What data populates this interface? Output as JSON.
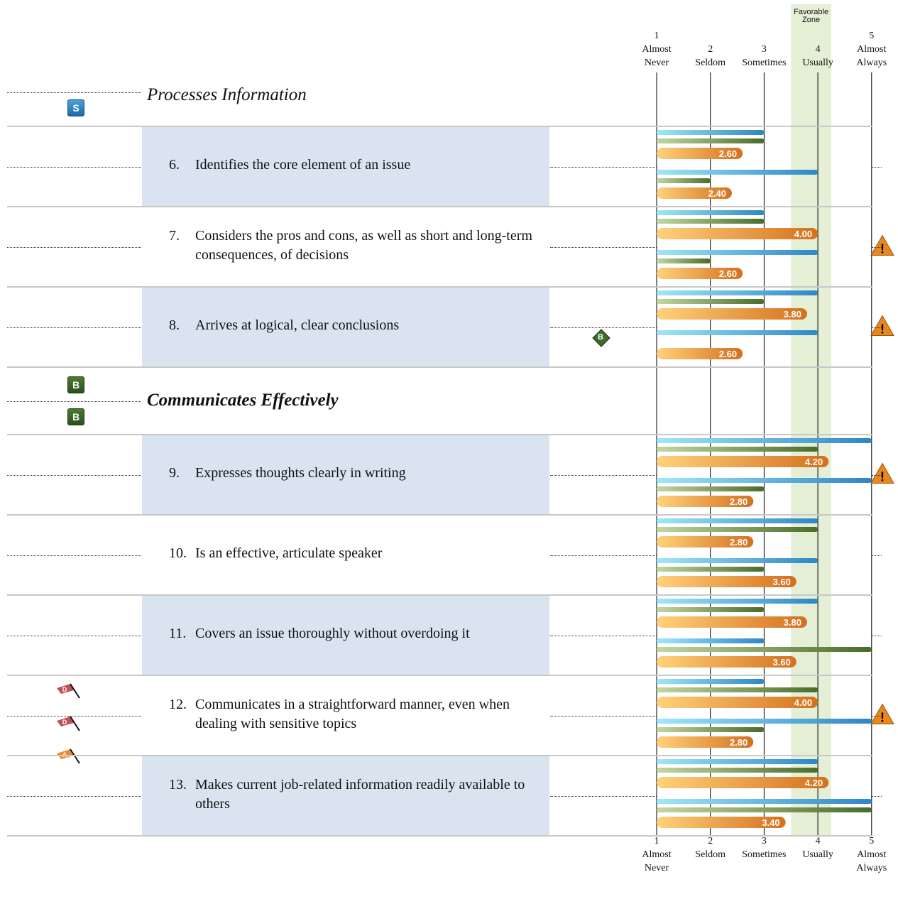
{
  "chart_data": {
    "type": "bar",
    "orientation": "horizontal",
    "x_range": [
      1,
      5
    ],
    "scale": [
      {
        "value": "1",
        "lines": [
          "Almost",
          "Never"
        ]
      },
      {
        "value": "2",
        "lines": [
          "Seldom"
        ]
      },
      {
        "value": "3",
        "lines": [
          "Sometimes"
        ]
      },
      {
        "value": "4",
        "lines": [
          "Usually"
        ]
      },
      {
        "value": "5",
        "lines": [
          "Almost",
          "Always"
        ]
      }
    ],
    "favorable_zone": {
      "label_lines": [
        "Favorable",
        "Zone"
      ],
      "range": [
        3.5,
        4.25
      ],
      "color": "#e4efd6"
    },
    "colors": {
      "blue": "#2f86c6",
      "blue_light": "#9fe8f8",
      "green": "#4a6b2a",
      "green_light": "#c2d8a0",
      "orange": "#d4701e",
      "orange_light": "#ffd27a",
      "shaded_row": "#dae4f0"
    },
    "sections": [
      {
        "type": "header",
        "title": "Processes Information",
        "bold": false,
        "badges": [
          "S"
        ]
      },
      {
        "type": "item",
        "num": "6.",
        "text": "Identifies the core element of an issue",
        "shaded": true,
        "warning": false,
        "top": {
          "blue": 3.0,
          "green": 3.0,
          "orange": 2.6,
          "orange_label": "2.60"
        },
        "bottom": {
          "blue": 4.0,
          "green": 2.0,
          "orange": 2.4,
          "orange_label": "2.40"
        }
      },
      {
        "type": "item",
        "num": "7.",
        "text": "Considers the pros and cons, as well as short and long-term consequences, of decisions",
        "shaded": false,
        "warning": true,
        "top": {
          "blue": 3.0,
          "green": 3.0,
          "orange": 4.0,
          "orange_label": "4.00"
        },
        "bottom": {
          "blue": 4.0,
          "green": 2.0,
          "orange": 2.6,
          "orange_label": "2.60"
        }
      },
      {
        "type": "item",
        "num": "8.",
        "text": "Arrives at logical, clear conclusions",
        "shaded": true,
        "warning": true,
        "diamond": "B",
        "top": {
          "blue": 4.0,
          "green": 3.0,
          "orange": 3.8,
          "orange_label": "3.80"
        },
        "bottom": {
          "blue": 4.0,
          "green": null,
          "orange": 2.6,
          "orange_label": "2.60"
        }
      },
      {
        "type": "header",
        "title": "Communicates Effectively",
        "bold": true,
        "badges": [
          "B",
          "B"
        ]
      },
      {
        "type": "item",
        "num": "9.",
        "text": "Expresses thoughts clearly in writing",
        "shaded": true,
        "warning": true,
        "top": {
          "blue": 5.0,
          "green": 4.0,
          "orange": 4.2,
          "orange_label": "4.20"
        },
        "bottom": {
          "blue": 5.0,
          "green": 3.0,
          "orange": 2.8,
          "orange_label": "2.80"
        }
      },
      {
        "type": "item",
        "num": "10.",
        "text": "Is an effective, articulate speaker",
        "shaded": false,
        "warning": false,
        "top": {
          "blue": 4.0,
          "green": 4.0,
          "orange": 2.8,
          "orange_label": "2.80"
        },
        "bottom": {
          "blue": 4.0,
          "green": 3.0,
          "orange": 3.6,
          "orange_label": "3.60"
        }
      },
      {
        "type": "item",
        "num": "11.",
        "text": "Covers an issue thoroughly without overdoing it",
        "shaded": true,
        "warning": false,
        "top": {
          "blue": 4.0,
          "green": 3.0,
          "orange": 3.8,
          "orange_label": "3.80"
        },
        "bottom": {
          "blue": 3.0,
          "green": 5.0,
          "orange": 3.6,
          "orange_label": "3.60"
        }
      },
      {
        "type": "item",
        "num": "12.",
        "text": "Communicates in a straightforward manner, even when dealing with sensitive topics",
        "shaded": false,
        "warning": true,
        "flags": [
          {
            "letter": "D",
            "color": "#c0505a"
          },
          {
            "letter": "D",
            "color": "#c0505a"
          },
          {
            "letter": "A",
            "color": "#f08a2a"
          }
        ],
        "top": {
          "blue": 3.0,
          "green": 4.0,
          "orange": 4.0,
          "orange_label": "4.00"
        },
        "bottom": {
          "blue": 5.0,
          "green": 3.0,
          "orange": 2.8,
          "orange_label": "2.80"
        }
      },
      {
        "type": "item",
        "num": "13.",
        "text": "Makes current job-related information readily available to others",
        "shaded": true,
        "warning": false,
        "top": {
          "blue": 4.0,
          "green": 4.0,
          "orange": 4.2,
          "orange_label": "4.20"
        },
        "bottom": {
          "blue": 5.0,
          "green": 5.0,
          "orange": 3.4,
          "orange_label": "3.40"
        }
      }
    ]
  }
}
